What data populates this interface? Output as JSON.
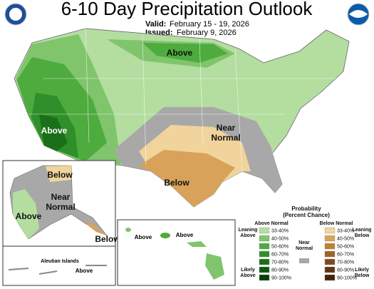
{
  "header": {
    "title": "6-10 Day Precipitation Outlook",
    "valid_label": "Valid:",
    "valid": "February 15 - 19, 2026",
    "issued_label": "Issued:",
    "issued": "February 9, 2026"
  },
  "map": {
    "labels": [
      "Above",
      "Above",
      "Near",
      "Normal",
      "Below"
    ]
  },
  "alaska": {
    "labels": [
      "Below",
      "Near",
      "Normal",
      "Above",
      "Below"
    ],
    "aleutian_title": "Aleutian Islands",
    "aleutian_label": "Above"
  },
  "hawaii": {
    "labels": [
      "Above",
      "Above"
    ]
  },
  "legend": {
    "title": "Probability",
    "subtitle": "(Percent Chance)",
    "above_heading": "Above Normal",
    "near_heading_1": "Near",
    "near_heading_2": "Normal",
    "below_heading": "Below Normal",
    "leaning_above_1": "Leaning",
    "leaning_above_2": "Above",
    "likely_above_1": "Likely",
    "likely_above_2": "Above",
    "leaning_below_1": "Leaning",
    "leaning_below_2": "Below",
    "likely_below_1": "Likely",
    "likely_below_2": "Below",
    "above": {
      "ranges": [
        "33-40%",
        "40-50%",
        "50-60%",
        "60-70%",
        "70-80%",
        "80-90%",
        "90-100%"
      ],
      "colors": [
        "#b3dea0",
        "#80c46c",
        "#4eab3e",
        "#2f8f2a",
        "#1a7018",
        "#0e5610",
        "#063f06"
      ]
    },
    "below": {
      "ranges": [
        "33-40%",
        "40-50%",
        "50-60%",
        "60-70%",
        "70-80%",
        "80-90%",
        "90-100%"
      ],
      "colors": [
        "#f0d49c",
        "#d9a25a",
        "#c07f33",
        "#a0622a",
        "#7f4a1e",
        "#5e3615",
        "#42240c"
      ]
    }
  }
}
